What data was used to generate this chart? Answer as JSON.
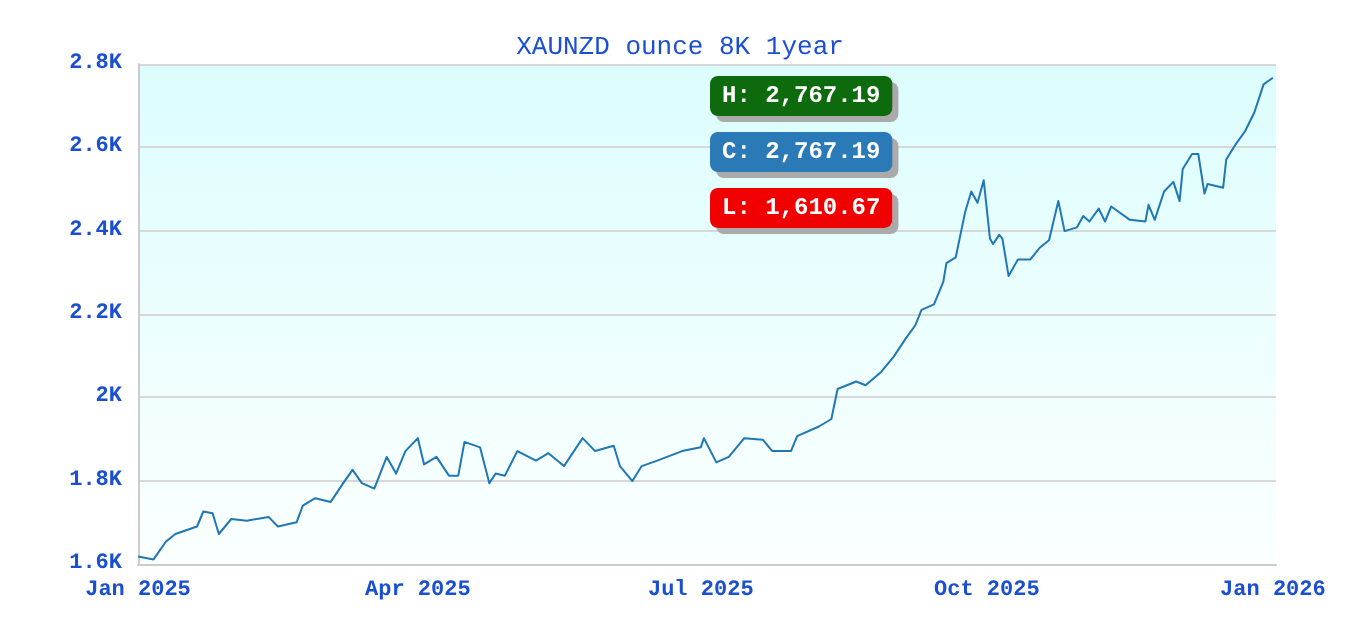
{
  "chart_data": {
    "type": "line",
    "title": "XAUNZD ounce 8K 1year",
    "x": [
      "2025-01-01",
      "2025-01-06",
      "2025-01-10",
      "2025-01-13",
      "2025-01-20",
      "2025-01-22",
      "2025-01-25",
      "2025-01-27",
      "2025-01-31",
      "2025-02-05",
      "2025-02-12",
      "2025-02-15",
      "2025-02-21",
      "2025-02-23",
      "2025-02-27",
      "2025-03-04",
      "2025-03-08",
      "2025-03-11",
      "2025-03-14",
      "2025-03-18",
      "2025-03-22",
      "2025-03-25",
      "2025-03-28",
      "2025-04-01",
      "2025-04-03",
      "2025-04-07",
      "2025-04-11",
      "2025-04-14",
      "2025-04-16",
      "2025-04-21",
      "2025-04-24",
      "2025-04-26",
      "2025-04-29",
      "2025-05-03",
      "2025-05-09",
      "2025-05-13",
      "2025-05-18",
      "2025-05-24",
      "2025-05-28",
      "2025-06-03",
      "2025-06-05",
      "2025-06-09",
      "2025-06-12",
      "2025-06-17",
      "2025-06-25",
      "2025-07-01",
      "2025-07-02",
      "2025-07-06",
      "2025-07-10",
      "2025-07-15",
      "2025-07-21",
      "2025-07-24",
      "2025-07-30",
      "2025-08-01",
      "2025-08-08",
      "2025-08-12",
      "2025-08-14",
      "2025-08-20",
      "2025-08-23",
      "2025-08-28",
      "2025-09-01",
      "2025-09-05",
      "2025-09-08",
      "2025-09-10",
      "2025-09-14",
      "2025-09-17",
      "2025-09-18",
      "2025-09-21",
      "2025-09-24",
      "2025-09-26",
      "2025-09-28",
      "2025-09-30",
      "2025-10-02",
      "2025-10-03",
      "2025-10-05",
      "2025-10-06",
      "2025-10-08",
      "2025-10-11",
      "2025-10-15",
      "2025-10-18",
      "2025-10-21",
      "2025-10-24",
      "2025-10-26",
      "2025-10-30",
      "2025-11-01",
      "2025-11-03",
      "2025-11-06",
      "2025-11-08",
      "2025-11-10",
      "2025-11-16",
      "2025-11-21",
      "2025-11-22",
      "2025-11-24",
      "2025-11-27",
      "2025-11-30",
      "2025-12-02",
      "2025-12-03",
      "2025-12-06",
      "2025-12-08",
      "2025-12-10",
      "2025-12-11",
      "2025-12-16",
      "2025-12-17",
      "2025-12-20",
      "2025-12-23",
      "2025-12-26",
      "2025-12-29",
      "2026-01-01"
    ],
    "series": [
      {
        "color": "#1f77b4",
        "values": [
          1618,
          1611,
          1654,
          1672,
          1690,
          1726,
          1722,
          1672,
          1708,
          1704,
          1713,
          1690,
          1700,
          1740,
          1758,
          1749,
          1794,
          1826,
          1794,
          1781,
          1857,
          1817,
          1871,
          1902,
          1839,
          1857,
          1812,
          1812,
          1893,
          1880,
          1794,
          1817,
          1812,
          1871,
          1848,
          1866,
          1835,
          1902,
          1871,
          1884,
          1835,
          1799,
          1835,
          1848,
          1871,
          1880,
          1902,
          1844,
          1857,
          1902,
          1898,
          1871,
          1871,
          1907,
          1930,
          1948,
          2020,
          2038,
          2029,
          2061,
          2097,
          2142,
          2173,
          2210,
          2223,
          2277,
          2322,
          2336,
          2444,
          2494,
          2467,
          2521,
          2381,
          2368,
          2390,
          2381,
          2291,
          2331,
          2331,
          2359,
          2377,
          2471,
          2399,
          2408,
          2435,
          2422,
          2453,
          2422,
          2458,
          2426,
          2422,
          2462,
          2426,
          2494,
          2517,
          2471,
          2548,
          2584,
          2584,
          2489,
          2512,
          2503,
          2571,
          2607,
          2638,
          2683,
          2751,
          2767
        ]
      }
    ],
    "xlim": [
      "2025-01-01",
      "2026-01-02"
    ],
    "xticks": [
      {
        "value": "2025-01-01",
        "label": "Jan 2025"
      },
      {
        "value": "2025-04-01",
        "label": "Apr 2025"
      },
      {
        "value": "2025-07-01",
        "label": "Jul 2025"
      },
      {
        "value": "2025-10-01",
        "label": "Oct 2025"
      },
      {
        "value": "2026-01-01",
        "label": "Jan 2026"
      }
    ],
    "ylim": [
      1600,
      2800
    ],
    "yticks": [
      {
        "value": 1600,
        "label": "1.6K"
      },
      {
        "value": 1800,
        "label": "1.8K"
      },
      {
        "value": 2000,
        "label": "2K"
      },
      {
        "value": 2200,
        "label": "2.2K"
      },
      {
        "value": 2400,
        "label": "2.4K"
      },
      {
        "value": 2600,
        "label": "2.6K"
      },
      {
        "value": 2800,
        "label": "2.8K"
      }
    ],
    "grid": "y",
    "marker": "none",
    "line_style": "solid",
    "annotations": [
      "H: 2,767.19",
      "C: 2,767.19",
      "L: 1,610.67"
    ]
  }
}
